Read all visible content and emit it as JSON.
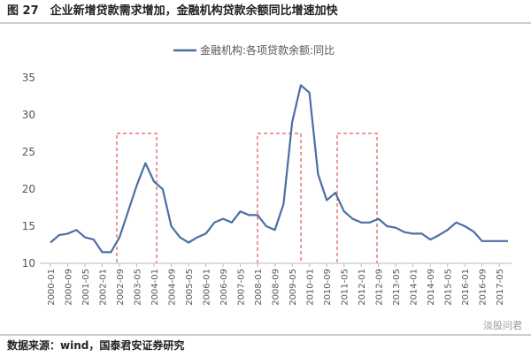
{
  "chart_data": {
    "type": "line",
    "title": "图 27　企业新增贷款需求增加，金融机构贷款余额同比增速加快",
    "source": "数据来源：wind，国泰君安证券研究",
    "watermark": "淡股问君",
    "categories": [
      "2000-01",
      null,
      "2000-09",
      null,
      "2001-05",
      null,
      "2002-01",
      null,
      "2002-09",
      null,
      "2003-05",
      null,
      "2004-01",
      null,
      "2004-09",
      null,
      "2005-05",
      null,
      "2006-01",
      null,
      "2006-09",
      null,
      "2007-05",
      null,
      "2008-01",
      null,
      "2008-09",
      null,
      "2009-05",
      null,
      "2010-01",
      null,
      "2010-09",
      null,
      "2011-05",
      null,
      "2012-01",
      null,
      "2012-09",
      null,
      "2013-05",
      null,
      "2014-01",
      null,
      "2014-09",
      null,
      "2015-05",
      null,
      "2016-01",
      null,
      "2016-09",
      null,
      "2017-05",
      null
    ],
    "series": [
      {
        "name": "金融机构:各项贷款余额:同比",
        "color": "#4a6fa5",
        "values": [
          12.8,
          13.8,
          14.0,
          14.5,
          13.5,
          13.2,
          11.5,
          11.5,
          13.5,
          17,
          20.5,
          23.5,
          21,
          20,
          15,
          13.5,
          12.8,
          13.5,
          14,
          15.5,
          16,
          15.5,
          17,
          16.5,
          16.5,
          15,
          14.5,
          18,
          29,
          34,
          33,
          22,
          18.5,
          19.5,
          17,
          16,
          15.5,
          15.5,
          16,
          15,
          14.8,
          14.2,
          14,
          14,
          13.2,
          13.8,
          14.5,
          15.5,
          15,
          14.3,
          13,
          13,
          13,
          13
        ]
      }
    ],
    "ylim": [
      10,
      35
    ],
    "yticks": [
      10,
      15,
      20,
      25,
      30,
      35
    ],
    "grid": false
  }
}
